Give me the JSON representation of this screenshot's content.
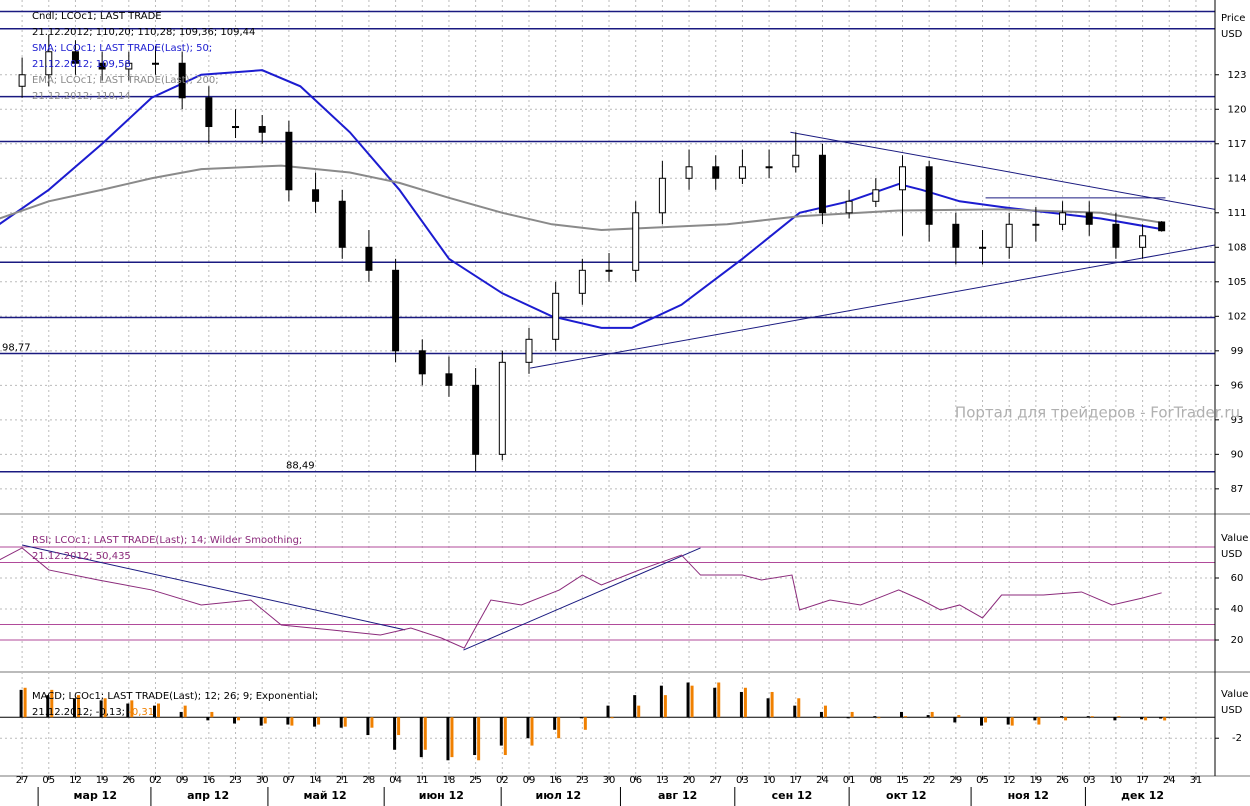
{
  "chart_data": [
    {
      "type": "candlestick",
      "legend": [
        [
          {
            "text": "Cndl; LCOc1; LAST TRADE",
            "color": "#000000"
          }
        ],
        [
          {
            "text": "21.12.2012; 110,20; 110,28; 109,36; 109,44",
            "color": "#000000"
          }
        ],
        [
          {
            "text": "SMA; LCOc1; LAST TRADE(Last);  50;",
            "color": "#1c1cd0"
          }
        ],
        [
          {
            "text": "21.12.2012; 109,58",
            "color": "#1c1cd0"
          }
        ],
        [
          {
            "text": "EMA; LCOc1; LAST TRADE(Last);  200;",
            "color": "#8a8a8a"
          }
        ],
        [
          {
            "text": "21.12.2012; 110,14",
            "color": "#8a8a8a"
          }
        ]
      ],
      "y_axis_label": [
        "Price",
        "USD"
      ],
      "annotation": "Портал для трейдеров - ForTrader.ru",
      "xlim": [
        -5.8,
        313
      ],
      "ylim": [
        84.9,
        129.5
      ],
      "yticks": [
        87,
        90,
        93,
        96,
        99,
        102,
        105,
        108,
        111,
        114,
        117,
        120,
        123
      ],
      "grid": true,
      "x": [
        0,
        7,
        14,
        21,
        28,
        35,
        42,
        49,
        56,
        63,
        70,
        77,
        84,
        91,
        98,
        105,
        112,
        119,
        126,
        133,
        140,
        147,
        154,
        161,
        168,
        175,
        182,
        189,
        196,
        203,
        210,
        217,
        224,
        231,
        238,
        245,
        252,
        259,
        266,
        273,
        280,
        287,
        294,
        299
      ],
      "open": [
        122,
        123,
        125,
        124,
        123.5,
        124,
        124,
        121,
        118.5,
        118.5,
        118,
        113,
        112,
        108,
        106,
        99,
        97,
        96,
        90,
        98,
        100,
        104,
        106,
        106,
        111,
        114,
        115,
        114,
        115,
        115,
        116,
        111,
        112,
        113,
        115,
        110,
        108,
        108,
        110,
        110,
        111,
        110,
        108,
        110.2
      ],
      "high": [
        124.5,
        126.5,
        126,
        125,
        125,
        125.5,
        125,
        122,
        120,
        119.5,
        119,
        114.5,
        113,
        109.5,
        107,
        100,
        98.5,
        97.5,
        99,
        101,
        105,
        107,
        107.5,
        112,
        115.5,
        116.5,
        116,
        116.5,
        116.5,
        118,
        117,
        113,
        114,
        116,
        115.5,
        111,
        109.5,
        111,
        111.5,
        112,
        112,
        111,
        110,
        110.28
      ],
      "low": [
        121,
        122,
        123,
        122.5,
        122.5,
        123,
        120,
        117,
        117.5,
        117,
        112,
        111,
        107,
        105,
        98,
        96,
        95,
        88.5,
        89.5,
        97,
        99,
        103,
        105,
        105,
        110,
        113,
        113,
        113.5,
        114,
        114.5,
        110,
        110.5,
        111.5,
        109,
        108.5,
        106.5,
        106.5,
        107,
        108.5,
        109.5,
        109,
        107,
        107,
        109.36
      ],
      "close": [
        123,
        125,
        124,
        123.5,
        124,
        124,
        121,
        118.5,
        118.5,
        118,
        113,
        112,
        108,
        106,
        99,
        97,
        96,
        90,
        98,
        100,
        104,
        106,
        106,
        111,
        114,
        115,
        114,
        115,
        115,
        116,
        111,
        112,
        113,
        115,
        110,
        108,
        108,
        110,
        110,
        111,
        110,
        108,
        109,
        109.44
      ],
      "series": [
        {
          "color": "#1c1cd0",
          "x": [
            -6,
            7,
            21,
            34,
            47,
            63,
            73,
            86,
            99,
            112,
            126,
            139,
            152,
            160,
            173,
            189,
            204,
            217,
            230,
            236,
            246,
            257,
            270,
            283,
            299
          ],
          "values": [
            110,
            113,
            117,
            121,
            123,
            123.4,
            122,
            118,
            113,
            107,
            104,
            102,
            101,
            101,
            103,
            107,
            111,
            112,
            113.5,
            113,
            112,
            111.5,
            111,
            110.5,
            109.58
          ]
        },
        {
          "color": "#8a8a8a",
          "x": [
            -6,
            7,
            21,
            34,
            47,
            68,
            86,
            99,
            112,
            126,
            139,
            152,
            165,
            185,
            204,
            230,
            257,
            283,
            299
          ],
          "values": [
            110.5,
            112,
            113,
            114,
            114.8,
            115.1,
            114.5,
            113.6,
            112.3,
            111,
            110,
            109.5,
            109.7,
            110,
            110.7,
            111.2,
            111.3,
            111,
            110.14
          ]
        }
      ],
      "levels": [
        128.5,
        127,
        121.1,
        117.2,
        106.7,
        101.9,
        {
          "value": 98.77,
          "label": "98,77"
        },
        {
          "value": 88.49,
          "label": "88,49"
        }
      ],
      "trendlines": [
        {
          "x": [
            201.6,
            313
          ],
          "y": [
            118,
            111.3
          ]
        },
        {
          "x": [
            133.3,
            313
          ],
          "y": [
            97.5,
            108.2
          ]
        },
        {
          "x": [
            252.8,
            300
          ],
          "y": [
            112.3,
            112.3
          ]
        }
      ]
    },
    {
      "type": "line",
      "legend": [
        [
          {
            "text": "RSI; LCOc1; LAST TRADE(Last);  14; Wilder Smoothing;",
            "color": "#8b2a7b"
          }
        ],
        [
          {
            "text": "21.12.2012; 50,435",
            "color": "#8b2a7b"
          }
        ]
      ],
      "y_axis_label": [
        "Value",
        "USD"
      ],
      "xlim": [
        -5.8,
        313
      ],
      "ylim": [
        0,
        100
      ],
      "yticks": [
        20,
        40,
        60
      ],
      "grid": true,
      "series": [
        {
          "color": "#8b2a7b",
          "x": [
            -6,
            0,
            7,
            20,
            34,
            47,
            60,
            68,
            81,
            94,
            102,
            110,
            116,
            123,
            131,
            141,
            147,
            152,
            162,
            173,
            178,
            189,
            194,
            202,
            204,
            212,
            220,
            230,
            236,
            241,
            246,
            252,
            257,
            268,
            278,
            286,
            294,
            299
          ],
          "values": [
            71.6,
            79.4,
            65.2,
            58.7,
            52.3,
            42.6,
            45.8,
            29.7,
            26.5,
            23.2,
            27.7,
            21.3,
            14.8,
            45.8,
            42.6,
            52.3,
            61.9,
            55.5,
            65.2,
            74.8,
            61.9,
            61.9,
            58.7,
            61.9,
            39.4,
            45.8,
            42.6,
            52.3,
            45.8,
            39.4,
            42.6,
            34.2,
            49,
            49,
            51,
            42.6,
            47.1,
            50.435
          ]
        }
      ],
      "levels": [
        20,
        30,
        70,
        80
      ],
      "trendlines": [
        {
          "x": [
            0,
            100.5
          ],
          "y": [
            81.3,
            26.5
          ]
        },
        {
          "x": [
            115.8,
            178
          ],
          "y": [
            13.5,
            79.4
          ]
        }
      ]
    },
    {
      "type": "histogram",
      "legend": [
        [
          {
            "text": "MACD; LCOc1; LAST TRADE(Last);  12; 26; 9; Exponential;",
            "color": "#000000"
          }
        ],
        [
          {
            "text": "21.12.2012; -0,13; ",
            "color": "#000000"
          },
          {
            "text": "-0,31",
            "color": "#f08000"
          }
        ]
      ],
      "y_axis_label": [
        "Value",
        "USD"
      ],
      "xlim": [
        -5.8,
        313
      ],
      "ylim": [
        -5.5,
        4.3
      ],
      "yticks": [
        -2
      ],
      "grid": true,
      "x": [
        0,
        7,
        14,
        21,
        28,
        35,
        42,
        49,
        56,
        63,
        70,
        77,
        84,
        91,
        98,
        105,
        112,
        119,
        126,
        133,
        140,
        147,
        154,
        161,
        168,
        175,
        182,
        189,
        196,
        203,
        210,
        217,
        224,
        231,
        238,
        245,
        252,
        259,
        266,
        273,
        280,
        287,
        294,
        299
      ],
      "series": [
        {
          "color": "#000000",
          "values": [
            2.6,
            2.1,
            1.8,
            1.6,
            1.3,
            1.1,
            0.5,
            -0.3,
            -0.6,
            -0.8,
            -0.7,
            -0.9,
            -1.0,
            -1.7,
            -3.1,
            -3.8,
            -4.1,
            -3.6,
            -2.7,
            -2.0,
            -1.2,
            -0.1,
            1.1,
            2.1,
            3.0,
            3.3,
            2.8,
            2.4,
            1.8,
            1.1,
            0.5,
            -0.1,
            0.1,
            0.5,
            0.2,
            -0.5,
            -0.8,
            -0.7,
            -0.3,
            0.1,
            0.1,
            -0.3,
            -0.2,
            -0.13
          ]
        },
        {
          "color": "#f08000",
          "values": [
            2.8,
            2.6,
            2.1,
            1.8,
            1.6,
            1.3,
            1.1,
            0.5,
            -0.3,
            -0.6,
            -0.8,
            -0.7,
            -0.9,
            -1.0,
            -1.7,
            -3.1,
            -3.8,
            -4.1,
            -3.6,
            -2.7,
            -2.0,
            -1.2,
            -0.1,
            1.1,
            2.1,
            3.0,
            3.3,
            2.8,
            2.4,
            1.8,
            1.1,
            0.5,
            -0.1,
            0.1,
            0.5,
            0.2,
            -0.5,
            -0.8,
            -0.7,
            -0.3,
            0.1,
            0.1,
            -0.3,
            -0.31
          ]
        }
      ],
      "xticks": [
        {
          "value": 0,
          "label": "27"
        },
        {
          "value": 7,
          "label": "05"
        },
        {
          "value": 14,
          "label": "12"
        },
        {
          "value": 21,
          "label": "19"
        },
        {
          "value": 28,
          "label": "26"
        },
        {
          "value": 35,
          "label": "02"
        },
        {
          "value": 42,
          "label": "09"
        },
        {
          "value": 49,
          "label": "16"
        },
        {
          "value": 56,
          "label": "23"
        },
        {
          "value": 63,
          "label": "30"
        },
        {
          "value": 70,
          "label": "07"
        },
        {
          "value": 77,
          "label": "14"
        },
        {
          "value": 84,
          "label": "21"
        },
        {
          "value": 91,
          "label": "28"
        },
        {
          "value": 98,
          "label": "04"
        },
        {
          "value": 105,
          "label": "11"
        },
        {
          "value": 112,
          "label": "18"
        },
        {
          "value": 119,
          "label": "25"
        },
        {
          "value": 126,
          "label": "02"
        },
        {
          "value": 133,
          "label": "09"
        },
        {
          "value": 140,
          "label": "16"
        },
        {
          "value": 147,
          "label": "23"
        },
        {
          "value": 154,
          "label": "30"
        },
        {
          "value": 161,
          "label": "06"
        },
        {
          "value": 168,
          "label": "13"
        },
        {
          "value": 175,
          "label": "20"
        },
        {
          "value": 182,
          "label": "27"
        },
        {
          "value": 189,
          "label": "03"
        },
        {
          "value": 196,
          "label": "10"
        },
        {
          "value": 203,
          "label": "17"
        },
        {
          "value": 210,
          "label": "24"
        },
        {
          "value": 217,
          "label": "01"
        },
        {
          "value": 224,
          "label": "08"
        },
        {
          "value": 231,
          "label": "15"
        },
        {
          "value": 238,
          "label": "22"
        },
        {
          "value": 245,
          "label": "29"
        },
        {
          "value": 252,
          "label": "05"
        },
        {
          "value": 259,
          "label": "12"
        },
        {
          "value": 266,
          "label": "19"
        },
        {
          "value": 273,
          "label": "26"
        },
        {
          "value": 280,
          "label": "03"
        },
        {
          "value": 287,
          "label": "10"
        },
        {
          "value": 294,
          "label": "17"
        },
        {
          "value": 301,
          "label": "24"
        },
        {
          "value": 308,
          "label": "31"
        }
      ],
      "months": [
        {
          "value": 19.2,
          "label": "мар 12"
        },
        {
          "value": 48.8,
          "label": "апр 12"
        },
        {
          "value": 79.5,
          "label": "май 12"
        },
        {
          "value": 110,
          "label": "июн 12"
        },
        {
          "value": 140.7,
          "label": "июл 12"
        },
        {
          "value": 172,
          "label": "авг 12"
        },
        {
          "value": 202,
          "label": "сен 12"
        },
        {
          "value": 232,
          "label": "окт 12"
        },
        {
          "value": 264,
          "label": "ноя 12"
        },
        {
          "value": 294,
          "label": "дек 12"
        }
      ]
    }
  ]
}
